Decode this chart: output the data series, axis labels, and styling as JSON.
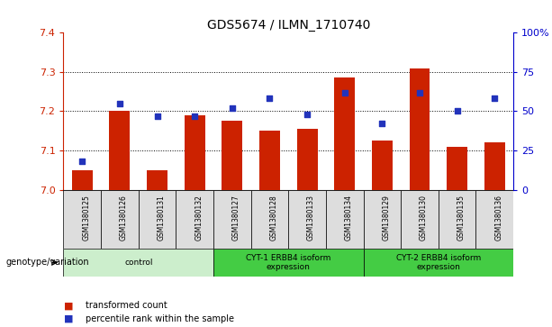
{
  "title": "GDS5674 / ILMN_1710740",
  "samples": [
    "GSM1380125",
    "GSM1380126",
    "GSM1380131",
    "GSM1380132",
    "GSM1380127",
    "GSM1380128",
    "GSM1380133",
    "GSM1380134",
    "GSM1380129",
    "GSM1380130",
    "GSM1380135",
    "GSM1380136"
  ],
  "bar_values": [
    7.05,
    7.2,
    7.05,
    7.19,
    7.175,
    7.15,
    7.155,
    7.285,
    7.125,
    7.31,
    7.11,
    7.12
  ],
  "scatter_values": [
    18,
    55,
    47,
    47,
    52,
    58,
    48,
    62,
    42,
    62,
    50,
    58
  ],
  "ylim_left": [
    7.0,
    7.4
  ],
  "ylim_right": [
    0,
    100
  ],
  "bar_color": "#cc2200",
  "scatter_color": "#2233bb",
  "bar_base": 7.0,
  "group_spans": [
    {
      "start": 0,
      "end": 3,
      "label": "control",
      "color": "#cceecc"
    },
    {
      "start": 4,
      "end": 7,
      "label": "CYT-1 ERBB4 isoform\nexpression",
      "color": "#44cc44"
    },
    {
      "start": 8,
      "end": 11,
      "label": "CYT-2 ERBB4 isoform\nexpression",
      "color": "#44cc44"
    }
  ],
  "legend_items": [
    {
      "color": "#cc2200",
      "label": "transformed count"
    },
    {
      "color": "#2233bb",
      "label": "percentile rank within the sample"
    }
  ],
  "grid_ticks_left": [
    7.0,
    7.1,
    7.2,
    7.3,
    7.4
  ],
  "grid_ticks_right": [
    0,
    25,
    50,
    75,
    100
  ],
  "right_tick_labels": [
    "0",
    "25",
    "50",
    "75",
    "100%"
  ],
  "left_tick_color": "#cc2200",
  "right_tick_color": "#0000cc",
  "sample_bg_color": "#dddddd",
  "genotype_label": "genotype/variation"
}
